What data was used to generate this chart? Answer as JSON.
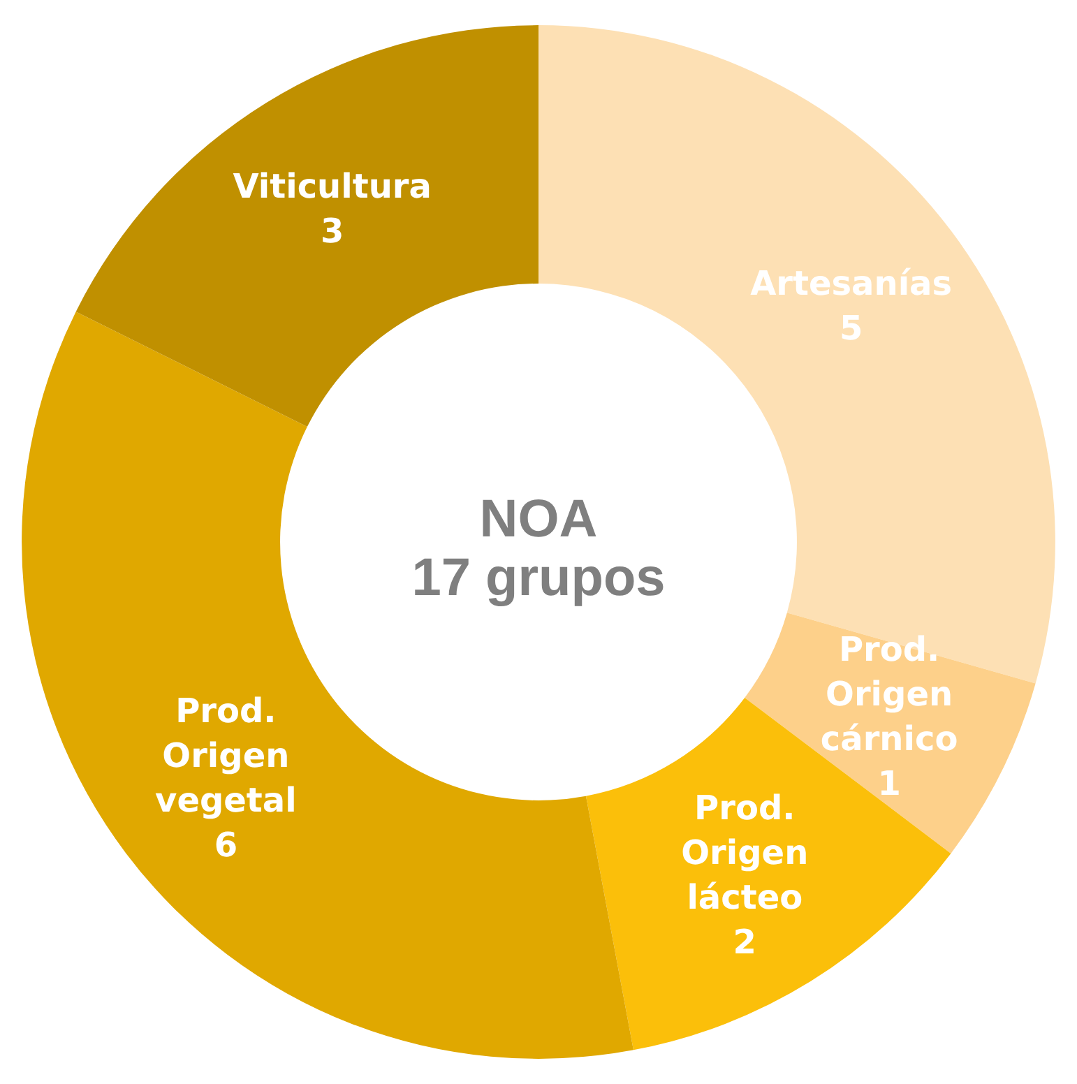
{
  "chart_data": {
    "type": "donut",
    "title": "NOA",
    "subtitle": "17 grupos",
    "categories": [
      "Artesanías",
      "Prod. Origen cárnico",
      "Prod. Origen lácteo",
      "Prod. Origen vegetal",
      "Viticultura"
    ],
    "values": [
      5,
      1,
      2,
      6,
      3
    ],
    "colors": [
      "#fde0b4",
      "#fdd08a",
      "#fbbf0a",
      "#e0a800",
      "#c09000"
    ],
    "data_labels": true
  }
}
